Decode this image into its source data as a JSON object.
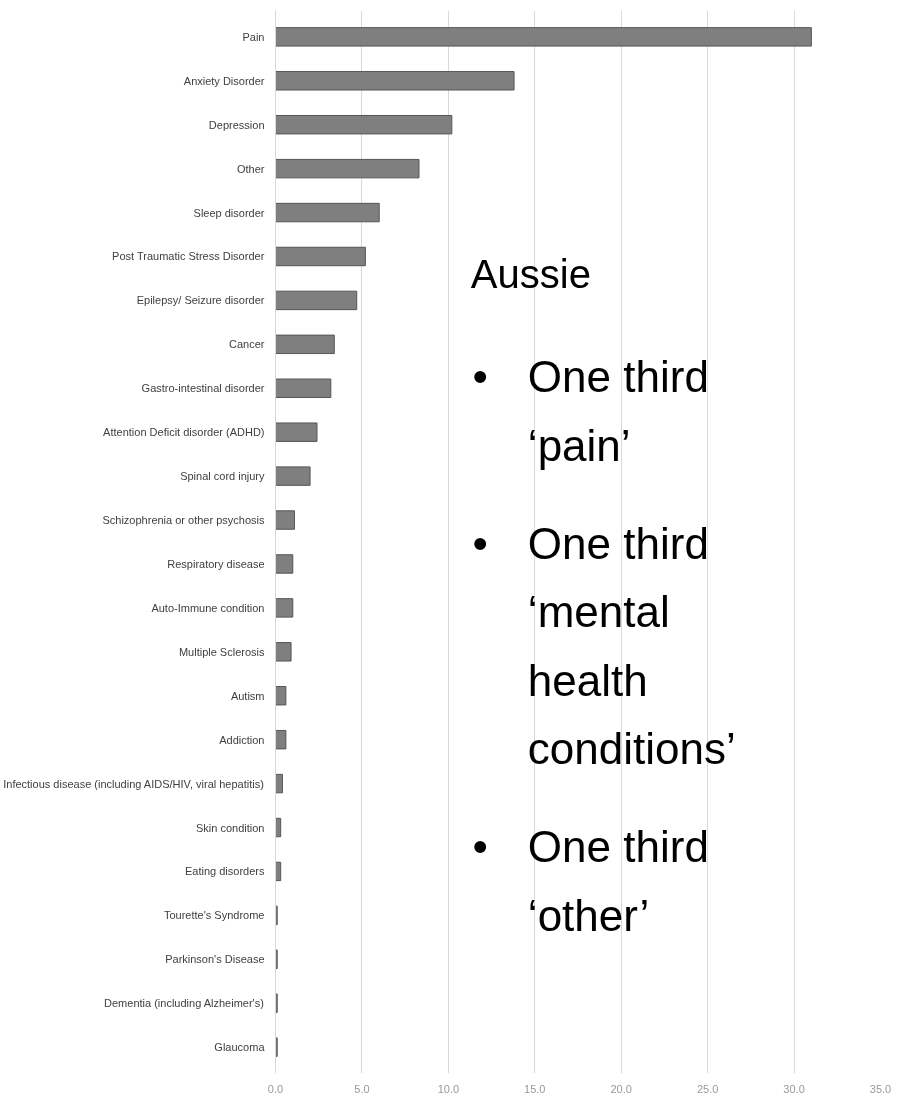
{
  "chart_data": {
    "type": "bar",
    "orientation": "horizontal",
    "categories": [
      "Pain",
      "Anxiety Disorder",
      "Depression",
      "Other",
      "Sleep disorder",
      "Post Traumatic Stress Disorder",
      "Epilepsy/ Seizure disorder",
      "Cancer",
      "Gastro-intestinal disorder",
      "Attention Deficit disorder (ADHD)",
      "Spinal cord injury",
      "Schizophrenia or other psychosis",
      "Respiratory disease",
      "Auto-Immune condition",
      "Multiple Sclerosis",
      "Autism",
      "Addiction",
      "Infectious disease (including AIDS/HIV, viral hepatitis)",
      "Skin condition",
      "Eating disorders",
      "Tourette's Syndrome",
      "Parkinson's Disease",
      "Dementia (including Alzheimer's)",
      "Glaucoma"
    ],
    "values": [
      31.0,
      13.8,
      10.2,
      8.3,
      6.0,
      5.2,
      4.7,
      3.4,
      3.2,
      2.4,
      2.0,
      1.1,
      1.0,
      1.0,
      0.9,
      0.6,
      0.6,
      0.4,
      0.3,
      0.3,
      0.1,
      0.1,
      0.1,
      0.1
    ],
    "color": "#7f7f7f",
    "xlim": [
      0,
      35
    ],
    "xticks": [
      {
        "value": 0,
        "label": "0.0"
      },
      {
        "value": 5,
        "label": "5.0"
      },
      {
        "value": 10,
        "label": "10.0"
      },
      {
        "value": 15,
        "label": "15.0"
      },
      {
        "value": 20,
        "label": "20.0"
      },
      {
        "value": 25,
        "label": "25.0"
      },
      {
        "value": 30,
        "label": "30.0"
      },
      {
        "value": 35,
        "label": "35.0"
      }
    ],
    "grid": "x",
    "annotations": [
      "Aussie",
      "• One third ‘pain’",
      "• One third ‘mental health conditions’",
      "• One third ‘other’"
    ]
  }
}
